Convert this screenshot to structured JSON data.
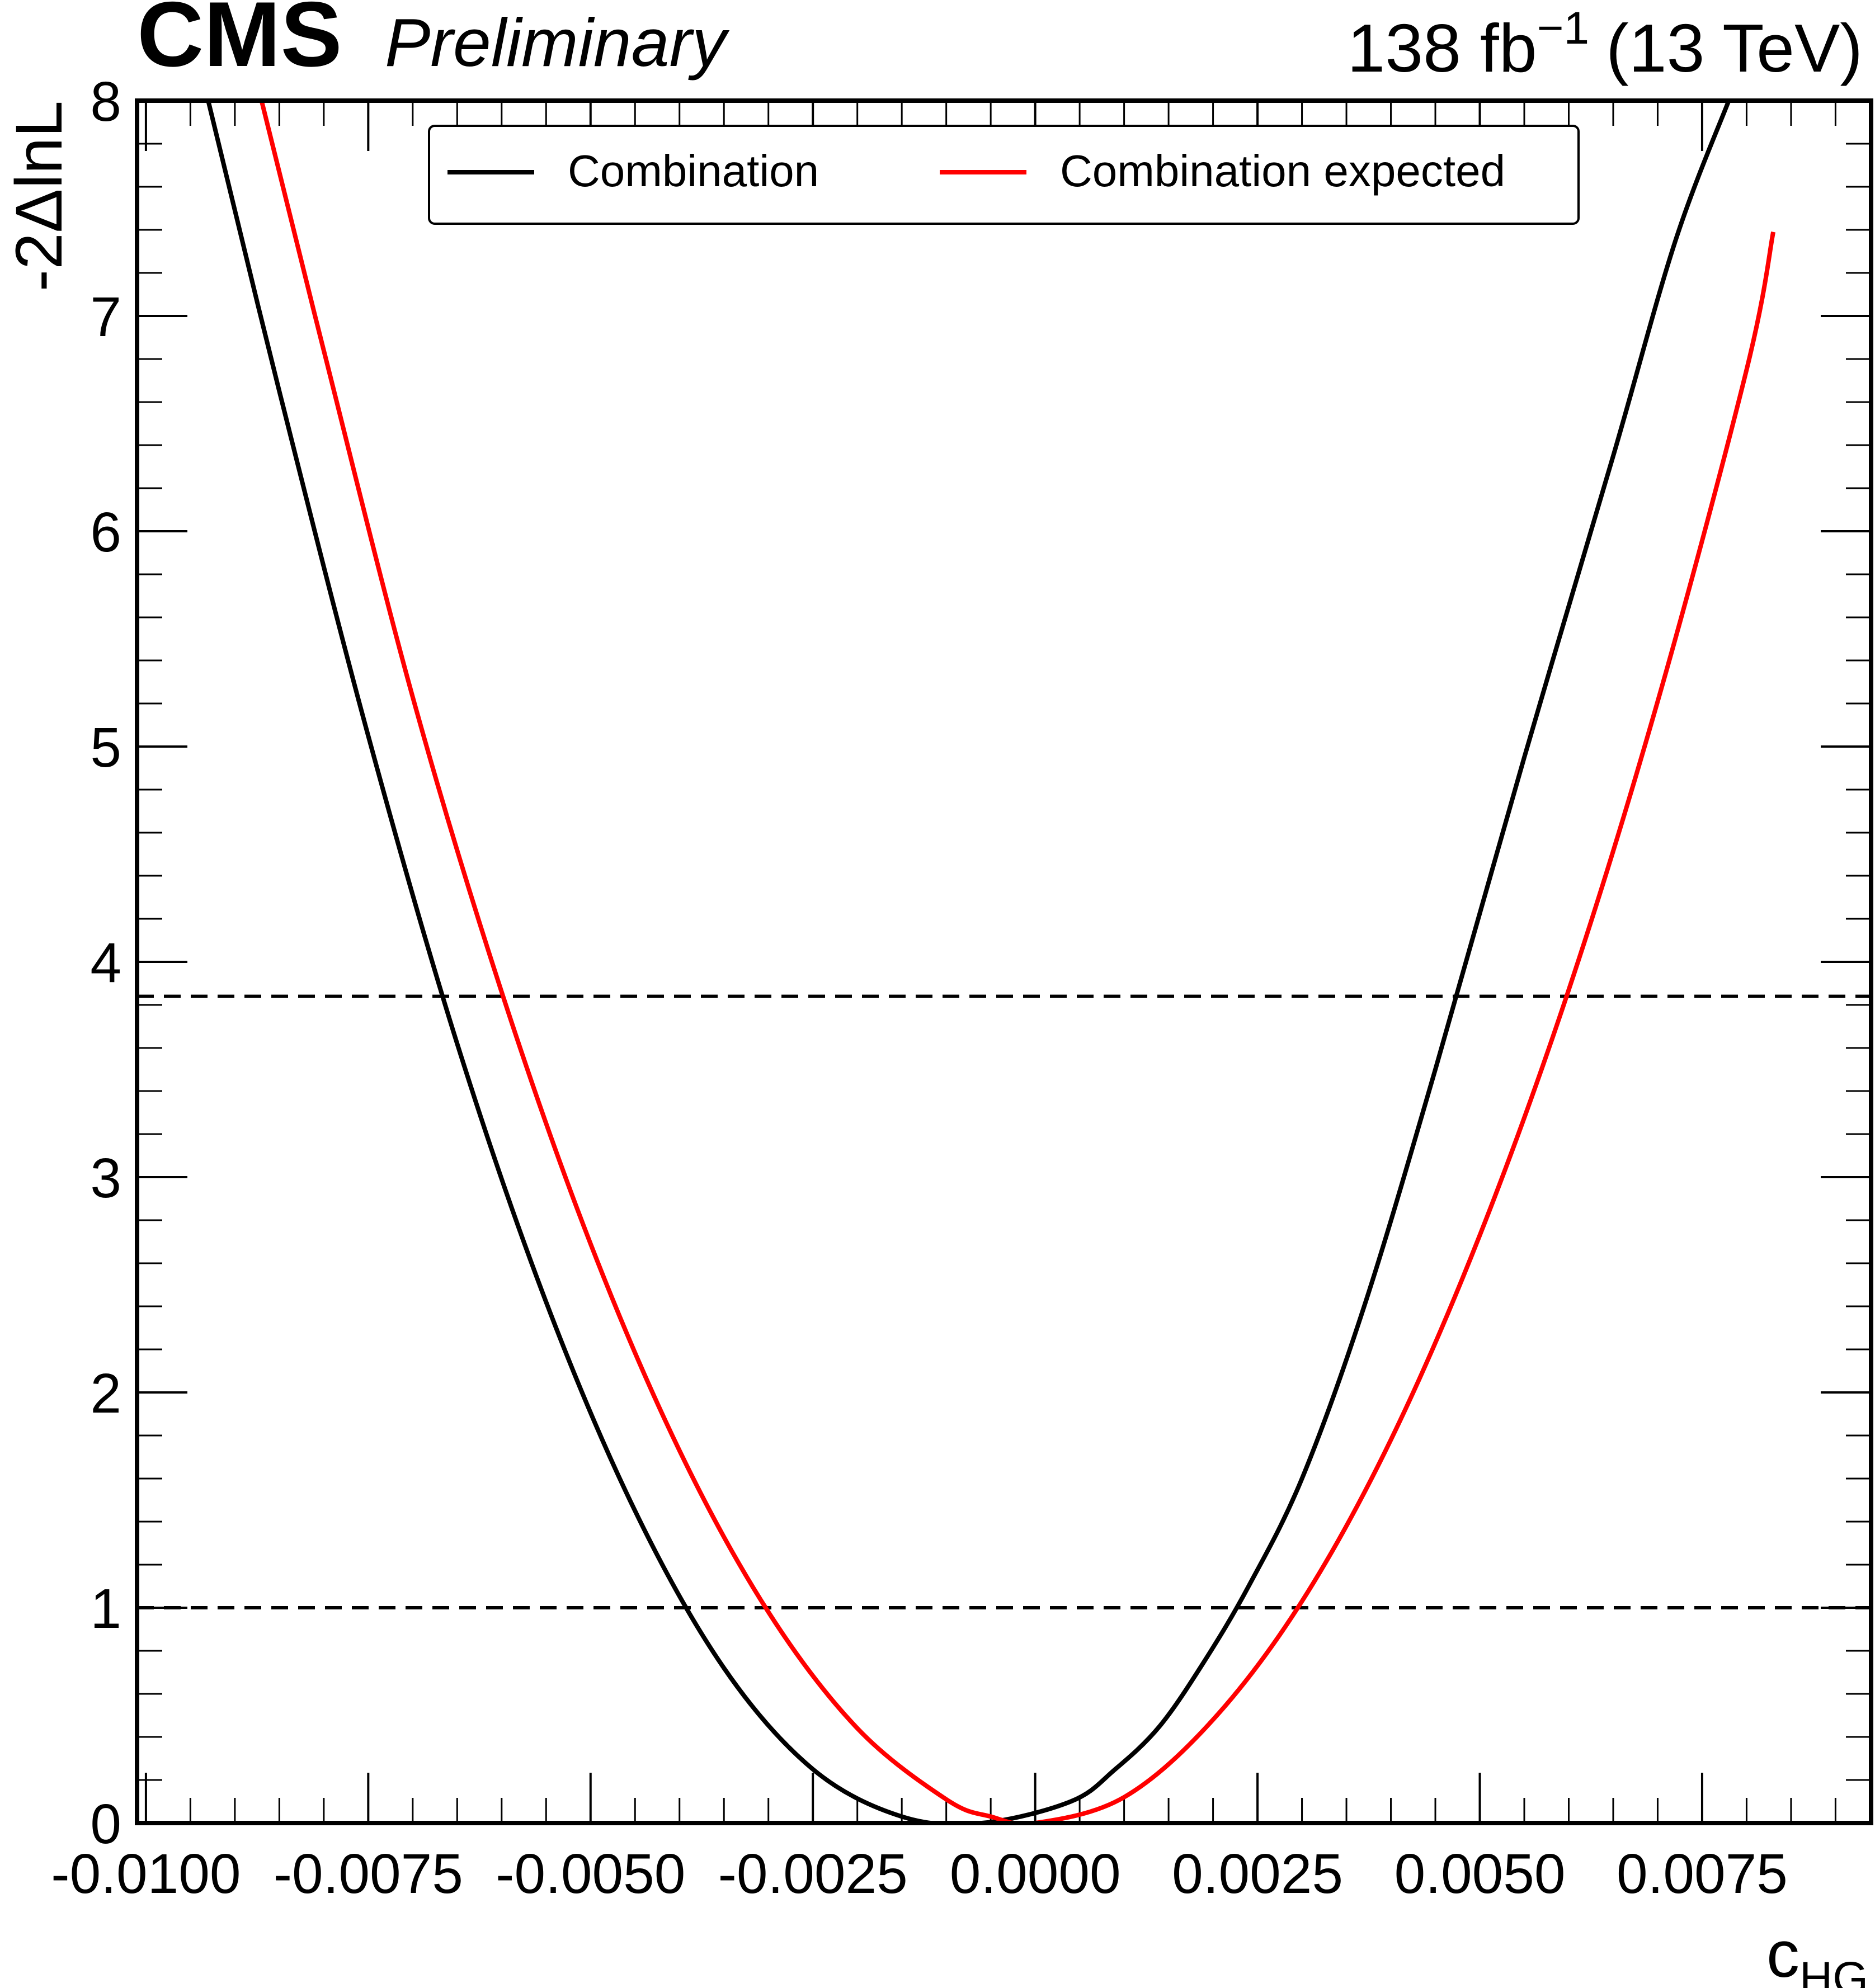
{
  "header": {
    "experiment": "CMS",
    "status": "Preliminary",
    "lumi_value": "138 fb",
    "lumi_exponent": "−1",
    "energy": "(13 TeV)"
  },
  "chart_data": {
    "type": "line",
    "xlabel": "c",
    "xlabel_subscript": "HG",
    "ylabel": "-2ΔlnL",
    "xlim": [
      -0.0101,
      0.0094
    ],
    "ylim": [
      0,
      8
    ],
    "x_ticks": [
      -0.01,
      -0.0075,
      -0.005,
      -0.0025,
      0.0,
      0.0025,
      0.005,
      0.0075
    ],
    "x_tick_labels": [
      "-0.0100",
      "-0.0075",
      "-0.0050",
      "-0.0025",
      "0.0000",
      "0.0025",
      "0.0050",
      "0.0075"
    ],
    "y_ticks": [
      0,
      1,
      2,
      3,
      4,
      5,
      6,
      7,
      8
    ],
    "y_tick_labels": [
      "0",
      "1",
      "2",
      "3",
      "4",
      "5",
      "6",
      "7",
      "8"
    ],
    "grid": false,
    "legend": {
      "placement": "top-center",
      "columns": 2
    },
    "series": [
      {
        "name": "Combination",
        "color": "#000000",
        "style": "solid",
        "x": [
          -0.0093,
          -0.0085,
          -0.0075,
          -0.0065,
          -0.0055,
          -0.0045,
          -0.0035,
          -0.0025,
          -0.0015,
          -0.0006,
          0.0004,
          0.0009,
          0.0014,
          0.0019,
          0.0024,
          0.003,
          0.0037,
          0.0045,
          0.0055,
          0.0065,
          0.0072,
          0.0078
        ],
        "y": [
          8.0,
          6.65,
          5.05,
          3.62,
          2.42,
          1.45,
          0.72,
          0.25,
          0.03,
          0.0,
          0.1,
          0.25,
          0.45,
          0.75,
          1.1,
          1.6,
          2.4,
          3.5,
          4.95,
          6.35,
          7.35,
          8.0
        ]
      },
      {
        "name": "Combination expected",
        "color": "#ff0000",
        "style": "solid",
        "x": [
          -0.0087,
          -0.008,
          -0.007,
          -0.006,
          -0.005,
          -0.004,
          -0.003,
          -0.002,
          -0.001,
          -0.0005,
          0.0,
          0.001,
          0.002,
          0.003,
          0.004,
          0.005,
          0.006,
          0.007,
          0.008,
          0.0083
        ],
        "y": [
          8.0,
          6.84,
          5.23,
          3.86,
          2.69,
          1.73,
          0.98,
          0.44,
          0.11,
          0.03,
          0.0,
          0.12,
          0.48,
          1.03,
          1.78,
          2.73,
          3.87,
          5.21,
          6.75,
          7.39
        ]
      }
    ],
    "reference_lines": [
      {
        "y": 1.0,
        "style": "dashed",
        "color": "#000000"
      },
      {
        "y": 3.84,
        "style": "dashed",
        "color": "#000000"
      }
    ]
  }
}
